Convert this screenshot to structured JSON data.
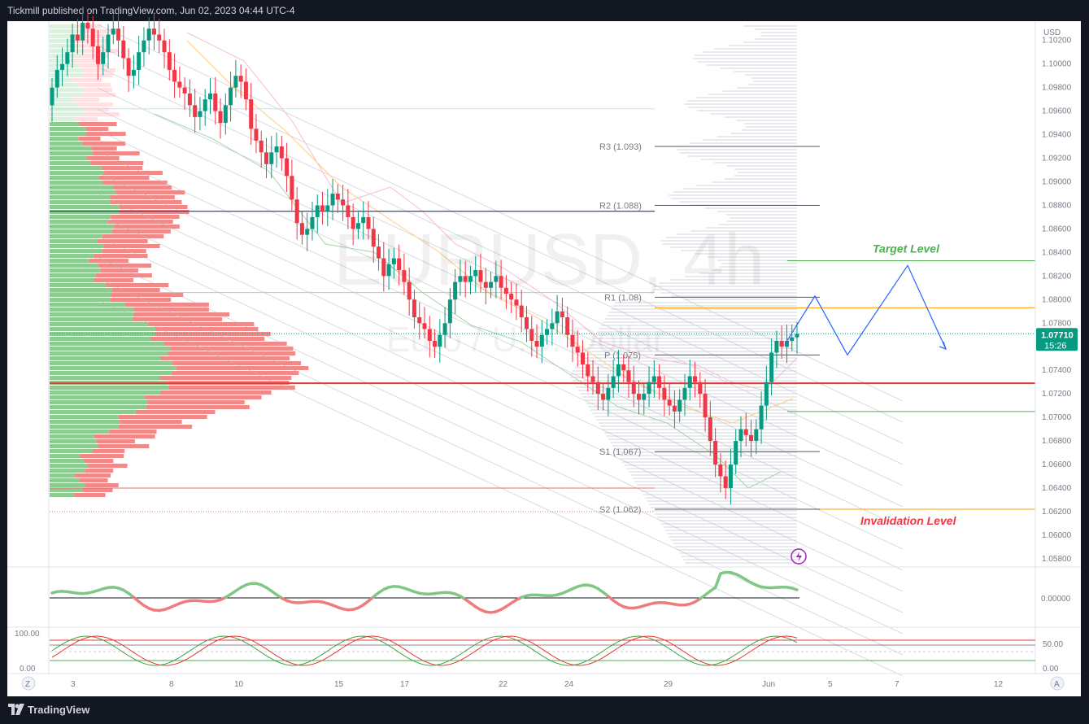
{
  "header": {
    "publisher_text": "Tickmill published on TradingView.com, Jun 02, 2023 04:44 UTC-4"
  },
  "footer": {
    "brand": "TradingView"
  },
  "colors": {
    "bull": "#26a69a",
    "bear": "#f23645",
    "candle_up": "#089981",
    "candle_down": "#f23645",
    "target": "#4caf50",
    "invalidation": "#f23645"
  },
  "chart_data": {
    "type": "candlestick",
    "symbol_watermark": "EURUSD, 4h",
    "symbol_name_watermark": "Euro / U.S. Dollar",
    "currency_label": "USD",
    "price_ticks": [
      "1.10200",
      "1.10000",
      "1.09800",
      "1.09600",
      "1.09400",
      "1.09200",
      "1.09000",
      "1.08800",
      "1.08600",
      "1.08400",
      "1.08200",
      "1.08000",
      "1.07800",
      "1.07600",
      "1.07400",
      "1.07200",
      "1.07000",
      "1.06800",
      "1.06600",
      "1.06400",
      "1.06200",
      "1.06000",
      "1.05800"
    ],
    "price_range": [
      1.0573,
      1.1035
    ],
    "last_price": "1.07710",
    "last_price_value": 1.0771,
    "countdown": "15:26",
    "time_ticks": [
      "3",
      "8",
      "10",
      "15",
      "17",
      "22",
      "24",
      "29",
      "Jun",
      "5",
      "7",
      "12"
    ],
    "levels": [
      {
        "label": "R3 (1.093)",
        "value": 1.093
      },
      {
        "label": "R2 (1.088)",
        "value": 1.088
      },
      {
        "label": "R1 (1.08)",
        "value": 1.0802
      },
      {
        "label": "P (1.075)",
        "value": 1.0753
      },
      {
        "label": "S1 (1.067)",
        "value": 1.0671
      },
      {
        "label": "S2 (1.062)",
        "value": 1.0622
      }
    ],
    "annotations": [
      {
        "text": "Target Level",
        "value": 1.0833
      },
      {
        "text": "Invalidation Level",
        "value": 1.0622
      }
    ],
    "horizontal_lines": {
      "poc_red": 1.0729,
      "blue": 1.0875,
      "orange": 1.0793,
      "green_lower": 1.0705,
      "red_low": 1.064
    },
    "projection_path": [
      1.0762,
      1.0803,
      1.0753,
      1.0829,
      1.0758
    ],
    "candles_close": [
      1.098,
      1.0995,
      1.1,
      1.101,
      1.1025,
      1.102,
      1.1035,
      1.103,
      1.1015,
      1.1,
      1.101,
      1.1025,
      1.103,
      1.102,
      1.1005,
      1.099,
      1.0995,
      1.101,
      1.102,
      1.103,
      1.1025,
      1.102,
      1.101,
      1.0995,
      1.0985,
      1.098,
      1.0975,
      1.0965,
      1.0955,
      1.096,
      1.097,
      1.0975,
      1.096,
      1.095,
      1.0965,
      1.098,
      1.099,
      1.0985,
      1.097,
      1.0945,
      1.0935,
      1.0925,
      1.0915,
      1.0925,
      1.093,
      1.092,
      1.0905,
      1.0885,
      1.0865,
      1.0855,
      1.086,
      1.087,
      1.088,
      1.0875,
      1.088,
      1.089,
      1.0885,
      1.088,
      1.087,
      1.086,
      1.0865,
      1.087,
      1.086,
      1.0845,
      1.0835,
      1.082,
      1.083,
      1.0835,
      1.0825,
      1.0815,
      1.08,
      1.0785,
      1.078,
      1.0775,
      1.0765,
      1.076,
      1.077,
      1.078,
      1.08,
      1.0815,
      1.082,
      1.0815,
      1.082,
      1.0825,
      1.0815,
      1.081,
      1.0815,
      1.082,
      1.081,
      1.0805,
      1.08,
      1.0795,
      1.0785,
      1.0775,
      1.0765,
      1.076,
      1.077,
      1.0775,
      1.078,
      1.079,
      1.0785,
      1.077,
      1.076,
      1.0755,
      1.0745,
      1.0735,
      1.073,
      1.072,
      1.0715,
      1.0725,
      1.0735,
      1.0745,
      1.074,
      1.073,
      1.072,
      1.0715,
      1.072,
      1.073,
      1.0735,
      1.0725,
      1.0715,
      1.071,
      1.0705,
      1.0715,
      1.0725,
      1.0735,
      1.073,
      1.072,
      1.07,
      1.068,
      1.066,
      1.065,
      1.064,
      1.066,
      1.068,
      1.069,
      1.0685,
      1.068,
      1.069,
      1.071,
      1.073,
      1.0755,
      1.0765,
      1.076,
      1.0765,
      1.0768,
      1.0771
    ]
  }
}
